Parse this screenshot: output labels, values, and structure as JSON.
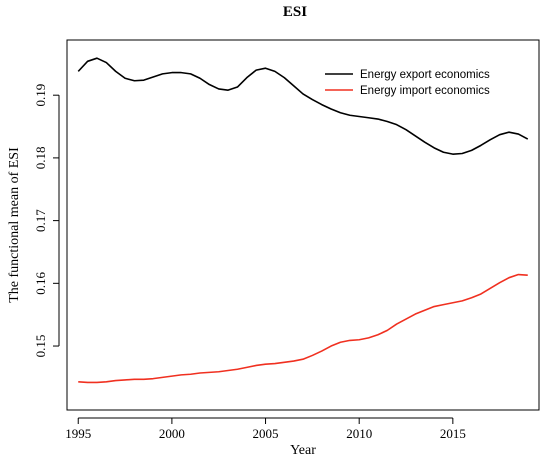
{
  "chart_data": {
    "type": "line",
    "title": "ESI",
    "xlabel": "Year",
    "ylabel": "The functional mean of ESI",
    "xlim": [
      1994.4,
      2019.6
    ],
    "ylim": [
      0.1398,
      0.1988
    ],
    "x_ticks": [
      1995,
      2000,
      2005,
      2010,
      2015
    ],
    "x_tick_labels": [
      "1995",
      "2000",
      "2005",
      "2010",
      "2015"
    ],
    "y_ticks": [
      0.15,
      0.16,
      0.17,
      0.18,
      0.19
    ],
    "y_tick_labels": [
      "0.15",
      "0.16",
      "0.17",
      "0.18",
      "0.19"
    ],
    "grid": false,
    "legend_position": "top-right",
    "series": [
      {
        "name": "Energy export economics",
        "color": "#000000",
        "x": [
          1995,
          1995.5,
          1996,
          1996.5,
          1997,
          1997.5,
          1998,
          1998.5,
          1999,
          1999.5,
          2000,
          2000.5,
          2001,
          2001.5,
          2002,
          2002.5,
          2003,
          2003.5,
          2004,
          2004.5,
          2005,
          2005.5,
          2006,
          2006.5,
          2007,
          2007.5,
          2008,
          2008.5,
          2009,
          2009.5,
          2010,
          2010.5,
          2011,
          2011.5,
          2012,
          2012.5,
          2013,
          2013.5,
          2014,
          2014.5,
          2015,
          2015.5,
          2016,
          2016.5,
          2017,
          2017.5,
          2018,
          2018.5,
          2019
        ],
        "y": [
          0.1938,
          0.1954,
          0.1959,
          0.1952,
          0.1938,
          0.1927,
          0.1923,
          0.1924,
          0.1929,
          0.1934,
          0.1936,
          0.1936,
          0.1934,
          0.1927,
          0.1917,
          0.191,
          0.1908,
          0.1913,
          0.1928,
          0.194,
          0.1943,
          0.1938,
          0.1928,
          0.1915,
          0.1902,
          0.1893,
          0.1885,
          0.1878,
          0.1872,
          0.1868,
          0.1866,
          0.1864,
          0.1862,
          0.1858,
          0.1853,
          0.1845,
          0.1835,
          0.1825,
          0.1816,
          0.1809,
          0.1806,
          0.1807,
          0.1812,
          0.182,
          0.1829,
          0.1837,
          0.1841,
          0.1838,
          0.183
        ]
      },
      {
        "name": "Energy import economics",
        "color": "#f03020",
        "x": [
          1995,
          1995.5,
          1996,
          1996.5,
          1997,
          1997.5,
          1998,
          1998.5,
          1999,
          1999.5,
          2000,
          2000.5,
          2001,
          2001.5,
          2002,
          2002.5,
          2003,
          2003.5,
          2004,
          2004.5,
          2005,
          2005.5,
          2006,
          2006.5,
          2007,
          2007.5,
          2008,
          2008.5,
          2009,
          2009.5,
          2010,
          2010.5,
          2011,
          2011.5,
          2012,
          2012.5,
          2013,
          2013.5,
          2014,
          2014.5,
          2015,
          2015.5,
          2016,
          2016.5,
          2017,
          2017.5,
          2018,
          2018.5,
          2019
        ],
        "y": [
          0.1443,
          0.1442,
          0.1442,
          0.1443,
          0.1445,
          0.1446,
          0.1447,
          0.1447,
          0.1448,
          0.145,
          0.1452,
          0.1454,
          0.1455,
          0.1457,
          0.1458,
          0.1459,
          0.1461,
          0.1463,
          0.1466,
          0.1469,
          0.1471,
          0.1472,
          0.1474,
          0.1476,
          0.1479,
          0.1485,
          0.1492,
          0.15,
          0.1506,
          0.1509,
          0.151,
          0.1513,
          0.1518,
          0.1525,
          0.1535,
          0.1543,
          0.1551,
          0.1557,
          0.1563,
          0.1566,
          0.1569,
          0.1572,
          0.1577,
          0.1583,
          0.1592,
          0.1601,
          0.1609,
          0.1614,
          0.1613
        ]
      }
    ]
  }
}
